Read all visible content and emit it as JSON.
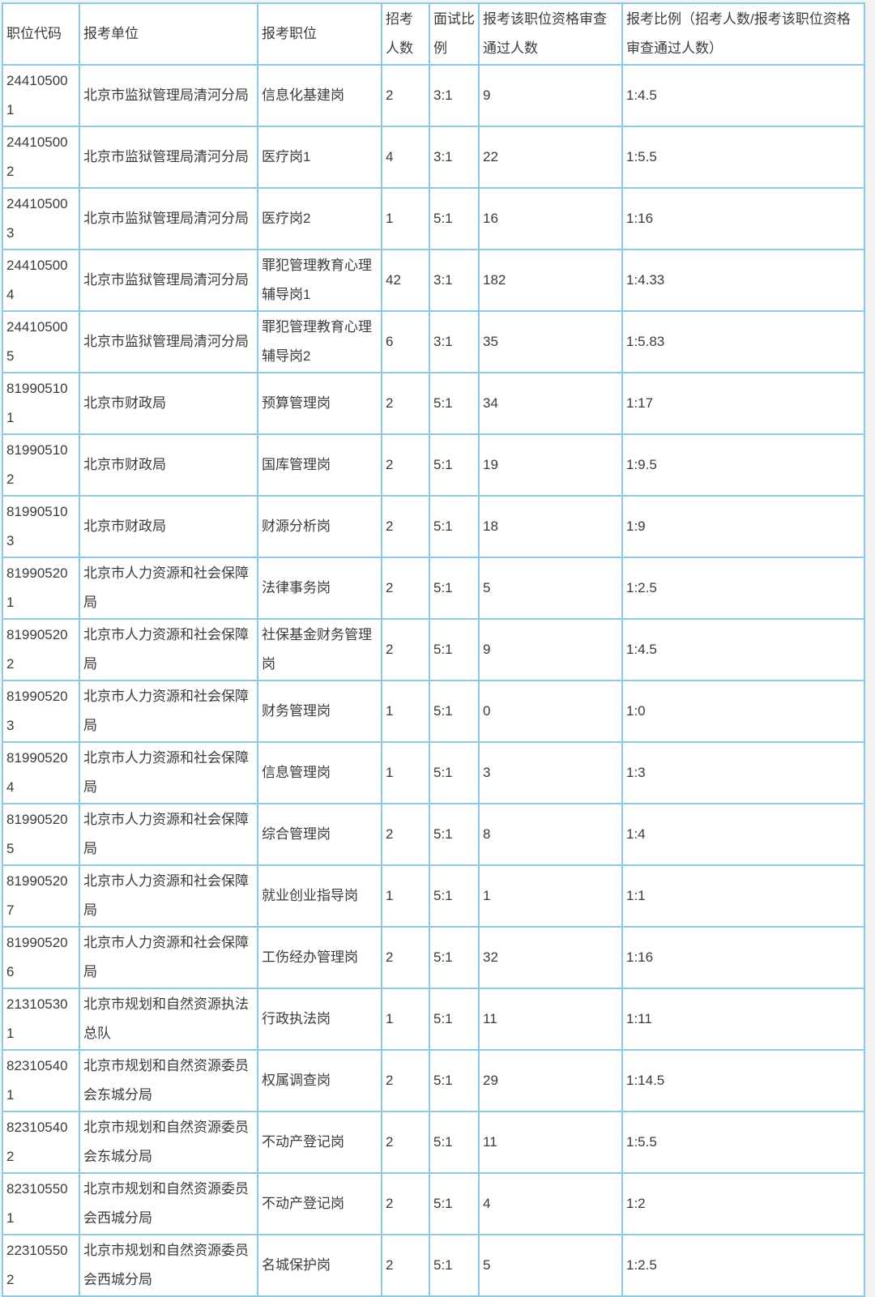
{
  "colors": {
    "border": "#8cc9e4",
    "cell_background": "#ffffff",
    "page_background": "#f2f2f2",
    "text": "#3b3b3b"
  },
  "table": {
    "columns": [
      "职位代码",
      "报考单位",
      "报考职位",
      "招考人数",
      "面试比例",
      "报考该职位资格审查通过人数",
      "报考比例（招考人数/报考该职位资格审查通过人数）"
    ],
    "rows": [
      [
        "244105001",
        "北京市监狱管理局清河分局",
        "信息化基建岗",
        "2",
        "3:1",
        "9",
        "1:4.5"
      ],
      [
        "244105002",
        "北京市监狱管理局清河分局",
        "医疗岗1",
        "4",
        "3:1",
        "22",
        "1:5.5"
      ],
      [
        "244105003",
        "北京市监狱管理局清河分局",
        "医疗岗2",
        "1",
        "5:1",
        "16",
        "1:16"
      ],
      [
        "244105004",
        "北京市监狱管理局清河分局",
        "罪犯管理教育心理辅导岗1",
        "42",
        "3:1",
        "182",
        "1:4.33"
      ],
      [
        "244105005",
        "北京市监狱管理局清河分局",
        "罪犯管理教育心理辅导岗2",
        "6",
        "3:1",
        "35",
        "1:5.83"
      ],
      [
        "819905101",
        "北京市财政局",
        "预算管理岗",
        "2",
        "5:1",
        "34",
        "1:17"
      ],
      [
        "819905102",
        "北京市财政局",
        "国库管理岗",
        "2",
        "5:1",
        "19",
        "1:9.5"
      ],
      [
        "819905103",
        "北京市财政局",
        "财源分析岗",
        "2",
        "5:1",
        "18",
        "1:9"
      ],
      [
        "819905201",
        "北京市人力资源和社会保障局",
        "法律事务岗",
        "2",
        "5:1",
        "5",
        "1:2.5"
      ],
      [
        "819905202",
        "北京市人力资源和社会保障局",
        "社保基金财务管理岗",
        "2",
        "5:1",
        "9",
        "1:4.5"
      ],
      [
        "819905203",
        "北京市人力资源和社会保障局",
        "财务管理岗",
        "1",
        "5:1",
        "0",
        "1:0"
      ],
      [
        "819905204",
        "北京市人力资源和社会保障局",
        "信息管理岗",
        "1",
        "5:1",
        "3",
        "1:3"
      ],
      [
        "819905205",
        "北京市人力资源和社会保障局",
        "综合管理岗",
        "2",
        "5:1",
        "8",
        "1:4"
      ],
      [
        "819905207",
        "北京市人力资源和社会保障局",
        "就业创业指导岗",
        "1",
        "5:1",
        "1",
        "1:1"
      ],
      [
        "819905206",
        "北京市人力资源和社会保障局",
        "工伤经办管理岗",
        "2",
        "5:1",
        "32",
        "1:16"
      ],
      [
        "213105301",
        "北京市规划和自然资源执法总队",
        "行政执法岗",
        "1",
        "5:1",
        "11",
        "1:11"
      ],
      [
        "823105401",
        "北京市规划和自然资源委员会东城分局",
        "权属调查岗",
        "2",
        "5:1",
        "29",
        "1:14.5"
      ],
      [
        "823105402",
        "北京市规划和自然资源委员会东城分局",
        "不动产登记岗",
        "2",
        "5:1",
        "11",
        "1:5.5"
      ],
      [
        "823105501",
        "北京市规划和自然资源委员会西城分局",
        "不动产登记岗",
        "2",
        "5:1",
        "4",
        "1:2"
      ],
      [
        "223105502",
        "北京市规划和自然资源委员会西城分局",
        "名城保护岗",
        "2",
        "5:1",
        "5",
        "1:2.5"
      ]
    ]
  }
}
